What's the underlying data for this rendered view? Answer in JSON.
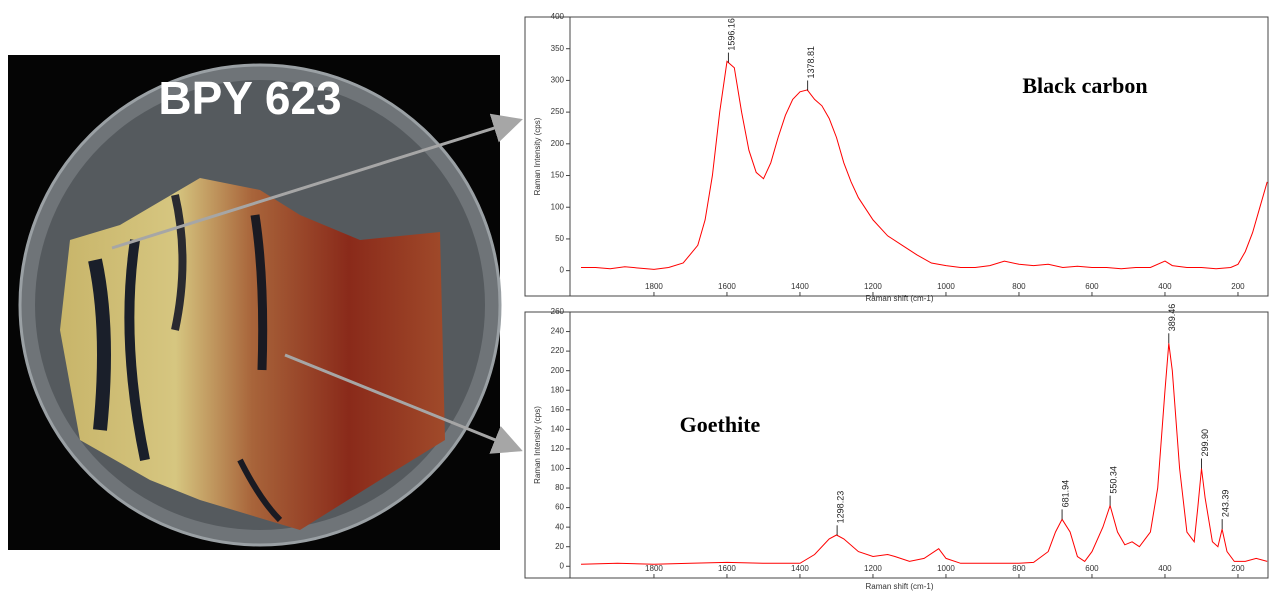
{
  "photo_label": "BPY 623",
  "chart_data": [
    {
      "type": "line",
      "annotation": "Black carbon",
      "x_label": "Raman shift (cm-1)",
      "y_label": "Raman Intensity (cps)",
      "color": "#ff0000",
      "x": [
        2000,
        1960,
        1920,
        1880,
        1840,
        1800,
        1760,
        1720,
        1680,
        1660,
        1640,
        1620,
        1600,
        1580,
        1560,
        1540,
        1520,
        1500,
        1480,
        1460,
        1440,
        1420,
        1400,
        1380,
        1360,
        1340,
        1320,
        1300,
        1280,
        1260,
        1240,
        1200,
        1160,
        1120,
        1080,
        1040,
        1000,
        960,
        920,
        880,
        840,
        800,
        760,
        720,
        680,
        640,
        600,
        560,
        520,
        480,
        440,
        400,
        380,
        340,
        300,
        260,
        220,
        200,
        180,
        160,
        140,
        120
      ],
      "values": [
        5,
        5,
        3,
        6,
        4,
        2,
        5,
        12,
        40,
        80,
        150,
        250,
        330,
        320,
        250,
        190,
        155,
        145,
        170,
        210,
        245,
        270,
        282,
        285,
        270,
        260,
        240,
        210,
        170,
        140,
        115,
        80,
        55,
        40,
        25,
        12,
        8,
        5,
        5,
        8,
        15,
        10,
        8,
        10,
        5,
        7,
        5,
        5,
        3,
        5,
        5,
        15,
        8,
        5,
        5,
        3,
        5,
        10,
        30,
        60,
        100,
        140
      ],
      "peak_labels": [
        "1596.16",
        "1378.81"
      ],
      "xlim": [
        2030,
        115
      ],
      "xticks": [
        1800,
        1600,
        1400,
        1200,
        1000,
        800,
        600,
        400,
        200
      ],
      "ylim": [
        -40,
        400
      ],
      "yticks": [
        0,
        50,
        100,
        150,
        200,
        250,
        300,
        350,
        400
      ]
    },
    {
      "type": "line",
      "annotation": "Goethite",
      "x_label": "Raman shift (cm-1)",
      "y_label": "Raman Intensity (cps)",
      "color": "#ff0000",
      "x": [
        2000,
        1900,
        1800,
        1700,
        1600,
        1500,
        1400,
        1360,
        1320,
        1300,
        1280,
        1240,
        1200,
        1160,
        1140,
        1100,
        1060,
        1020,
        1000,
        960,
        900,
        800,
        760,
        720,
        700,
        681.94,
        660,
        640,
        620,
        600,
        570,
        550.34,
        530,
        510,
        490,
        470,
        440,
        420,
        400,
        389.46,
        380,
        360,
        340,
        320,
        310,
        299.9,
        290,
        270,
        255,
        243.39,
        230,
        210,
        180,
        150,
        120
      ],
      "values": [
        2,
        3,
        2,
        3,
        4,
        3,
        3,
        12,
        28,
        32,
        28,
        15,
        10,
        12,
        10,
        5,
        8,
        18,
        8,
        3,
        3,
        3,
        4,
        15,
        35,
        48,
        35,
        10,
        5,
        15,
        40,
        62,
        35,
        22,
        25,
        20,
        35,
        80,
        180,
        228,
        200,
        100,
        35,
        25,
        60,
        100,
        70,
        25,
        20,
        38,
        15,
        5,
        5,
        8,
        5
      ],
      "peak_labels": [
        "1298.23",
        "681.94",
        "550.34",
        "389.46",
        "299.90",
        "243.39"
      ],
      "xlim": [
        2030,
        115
      ],
      "xticks": [
        1800,
        1600,
        1400,
        1200,
        1000,
        800,
        600,
        400,
        200
      ],
      "ylim": [
        -12,
        260
      ],
      "yticks": [
        0,
        20,
        40,
        60,
        80,
        100,
        120,
        140,
        160,
        180,
        200,
        220,
        240,
        260
      ]
    }
  ]
}
